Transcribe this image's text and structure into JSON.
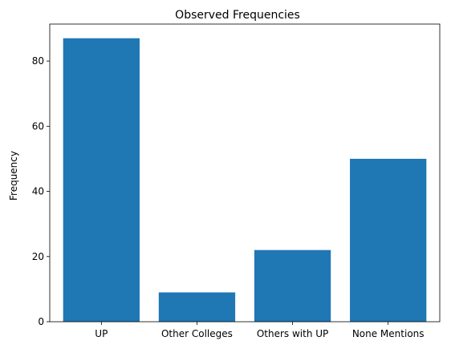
{
  "chart_data": {
    "type": "bar",
    "title": "Observed Frequencies",
    "xlabel": "",
    "ylabel": "Frequency",
    "categories": [
      "UP",
      "Other Colleges",
      "Others with UP",
      "None Mentions"
    ],
    "values": [
      87,
      9,
      22,
      50
    ],
    "ylim": [
      0,
      91.35
    ],
    "yticks": [
      0,
      20,
      40,
      60,
      80
    ],
    "grid": false,
    "bar_color": "#1f77b4"
  }
}
